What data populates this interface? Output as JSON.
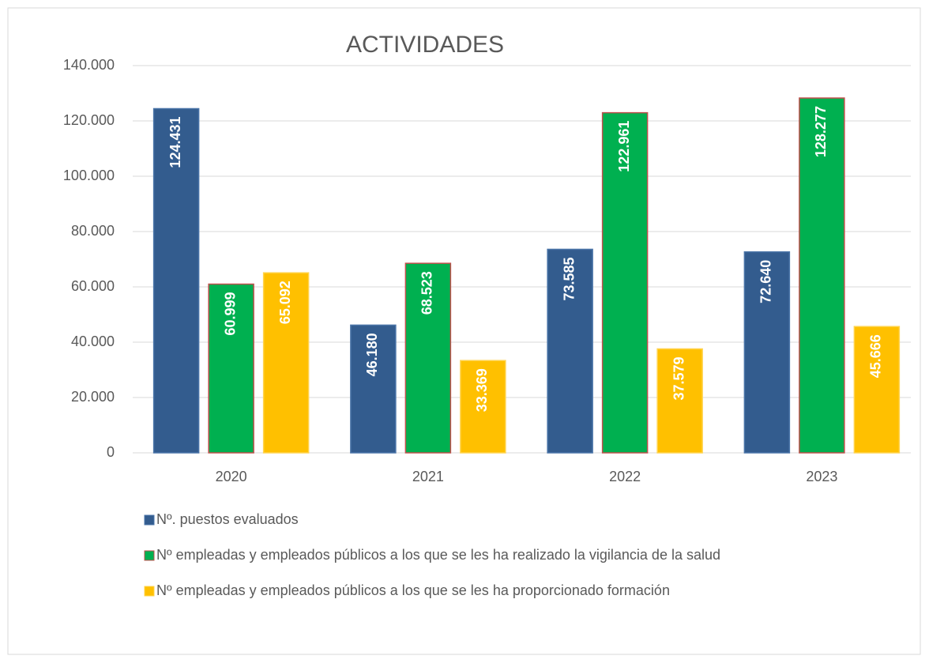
{
  "chart_data": {
    "type": "bar",
    "title": "ACTIVIDADES",
    "categories": [
      "2020",
      "2021",
      "2022",
      "2023"
    ],
    "series": [
      {
        "name": "Nº. puestos evaluados",
        "color": "#335c8e",
        "edgecolor": "#4a74a8",
        "values": [
          124431,
          46180,
          73585,
          72640
        ],
        "value_labels": [
          "124.431",
          "46.180",
          "73.585",
          "72.640"
        ]
      },
      {
        "name": "Nº empleadas y empleados públicos a los que se les ha realizado la vigilancia de la salud",
        "color": "#00b050",
        "edgecolor": "#c0504d",
        "values": [
          60999,
          68523,
          122961,
          128277
        ],
        "value_labels": [
          "60.999",
          "68.523",
          "122.961",
          "128.277"
        ]
      },
      {
        "name": "Nº empleadas y empleados públicos a los que se les ha proporcionado formación",
        "color": "#ffc000",
        "edgecolor": "#ffd34d",
        "values": [
          65092,
          33369,
          37579,
          45666
        ],
        "value_labels": [
          "65.092",
          "33.369",
          "37.579",
          "45.666"
        ]
      }
    ],
    "ylim": [
      0,
      140000
    ],
    "yticks": [
      0,
      {
        "value": 20000,
        "label": "20.000"
      },
      {
        "value": 40000,
        "label": "40.000"
      },
      {
        "value": 60000,
        "label": "60.000"
      },
      {
        "value": 80000,
        "label": "80.000"
      },
      {
        "value": 100000,
        "label": "100.000"
      },
      {
        "value": 120000,
        "label": "120.000"
      },
      {
        "value": 140000,
        "label": "140.000"
      }
    ],
    "grid": true,
    "legend": "bottom"
  }
}
